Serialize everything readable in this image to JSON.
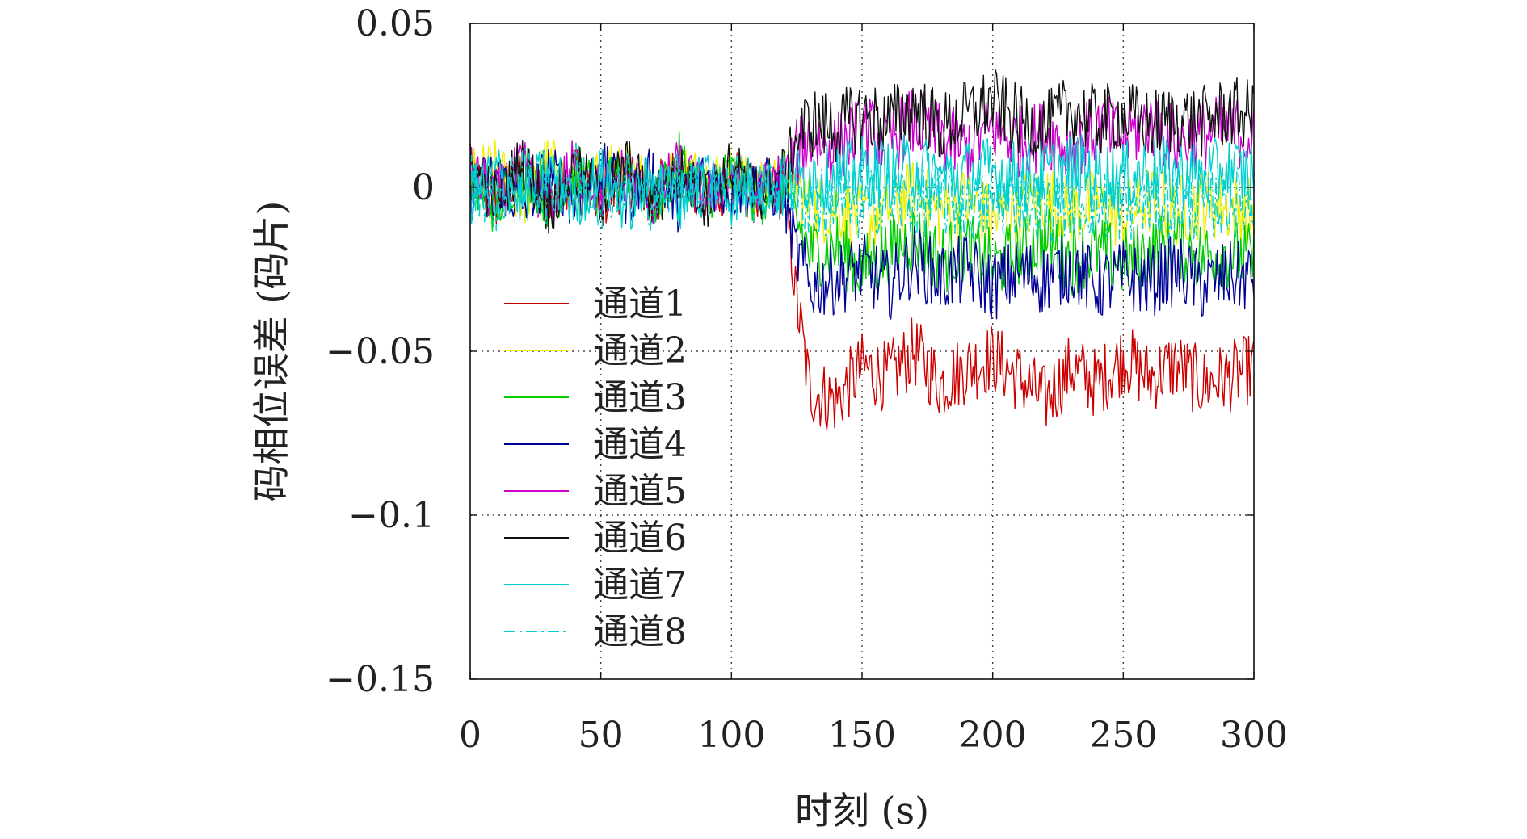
{
  "chart_data": {
    "type": "line",
    "xlabel": "时刻 (s)",
    "ylabel": "码相位误差 (码片)",
    "xlim": [
      0,
      300
    ],
    "ylim": [
      -0.15,
      0.05
    ],
    "xticks": [
      0,
      50,
      100,
      150,
      200,
      250,
      300
    ],
    "xtick_labels": [
      "0",
      "50",
      "100",
      "150",
      "200",
      "250",
      "300"
    ],
    "yticks": [
      0.05,
      0,
      -0.05,
      -0.1,
      -0.15
    ],
    "ytick_labels": [
      "0.05",
      "0",
      "−0.05",
      "−0.1",
      "−0.15"
    ],
    "grid": true,
    "legend_position": "lower-left",
    "x_sample": [
      0,
      10,
      20,
      30,
      40,
      50,
      60,
      70,
      80,
      90,
      100,
      110,
      120,
      125,
      130,
      140,
      150,
      160,
      170,
      180,
      190,
      200,
      210,
      220,
      230,
      240,
      250,
      260,
      270,
      280,
      290,
      300
    ],
    "series": [
      {
        "name": "通道1",
        "color": "#cc0000",
        "dash": "",
        "values": [
          0.002,
          -0.004,
          0.006,
          -0.003,
          0.004,
          -0.005,
          0.003,
          -0.002,
          0.005,
          -0.004,
          0.002,
          -0.003,
          0.001,
          -0.035,
          -0.062,
          -0.065,
          -0.055,
          -0.058,
          -0.05,
          -0.06,
          -0.055,
          -0.052,
          -0.058,
          -0.065,
          -0.055,
          -0.06,
          -0.052,
          -0.058,
          -0.054,
          -0.06,
          -0.058,
          -0.055
        ]
      },
      {
        "name": "通道2",
        "color": "#f0f000",
        "dash": "",
        "values": [
          0.003,
          0.006,
          -0.004,
          0.008,
          -0.002,
          0.004,
          0.01,
          -0.003,
          0.006,
          0.002,
          0.005,
          -0.002,
          0.004,
          0.0,
          -0.008,
          -0.005,
          -0.01,
          -0.006,
          -0.002,
          -0.008,
          -0.004,
          -0.01,
          -0.006,
          -0.003,
          -0.008,
          -0.005,
          -0.009,
          -0.004,
          -0.007,
          -0.005,
          -0.006,
          -0.008
        ]
      },
      {
        "name": "通道3",
        "color": "#00cc00",
        "dash": "",
        "values": [
          0.001,
          -0.006,
          0.007,
          -0.004,
          0.005,
          -0.003,
          0.006,
          -0.005,
          0.008,
          -0.002,
          0.004,
          -0.004,
          0.002,
          -0.01,
          -0.02,
          -0.018,
          -0.025,
          -0.02,
          -0.015,
          -0.022,
          -0.018,
          -0.024,
          -0.02,
          -0.016,
          -0.022,
          -0.019,
          -0.023,
          -0.02,
          -0.017,
          -0.021,
          -0.02,
          -0.022
        ]
      },
      {
        "name": "通道4",
        "color": "#000099",
        "dash": "",
        "values": [
          -0.002,
          0.004,
          -0.006,
          0.005,
          -0.004,
          0.006,
          -0.003,
          0.004,
          -0.005,
          0.003,
          -0.002,
          0.002,
          -0.003,
          -0.02,
          -0.03,
          -0.028,
          -0.025,
          -0.03,
          -0.022,
          -0.028,
          -0.025,
          -0.03,
          -0.026,
          -0.028,
          -0.024,
          -0.03,
          -0.027,
          -0.029,
          -0.025,
          -0.03,
          -0.027,
          -0.028
        ]
      },
      {
        "name": "通道5",
        "color": "#cc00cc",
        "dash": "",
        "values": [
          0.004,
          -0.003,
          0.006,
          -0.005,
          0.007,
          -0.002,
          0.005,
          -0.004,
          0.006,
          -0.003,
          0.004,
          -0.002,
          0.003,
          0.01,
          0.015,
          0.012,
          0.018,
          0.014,
          0.02,
          0.015,
          0.012,
          0.018,
          0.014,
          0.016,
          0.012,
          0.018,
          0.015,
          0.02,
          0.014,
          0.016,
          0.018,
          0.015
        ]
      },
      {
        "name": "通道6",
        "color": "#111111",
        "dash": "",
        "values": [
          0.006,
          -0.004,
          0.008,
          -0.006,
          0.005,
          -0.003,
          0.007,
          -0.005,
          0.004,
          -0.004,
          0.006,
          -0.002,
          0.004,
          0.015,
          0.02,
          0.018,
          0.022,
          0.02,
          0.025,
          0.018,
          0.022,
          0.026,
          0.02,
          0.018,
          0.024,
          0.02,
          0.022,
          0.019,
          0.021,
          0.02,
          0.023,
          0.022
        ]
      },
      {
        "name": "通道7",
        "color": "#00d0d0",
        "dash": "",
        "values": [
          -0.003,
          0.005,
          -0.004,
          0.006,
          -0.005,
          0.004,
          -0.006,
          0.003,
          -0.004,
          0.005,
          -0.003,
          0.003,
          -0.002,
          0.002,
          0.004,
          0.003,
          0.005,
          0.004,
          0.006,
          0.003,
          0.004,
          0.005,
          0.003,
          0.004,
          0.006,
          0.004,
          0.003,
          0.005,
          0.004,
          0.003,
          0.005,
          0.004
        ]
      },
      {
        "name": "通道8",
        "color": "#00d0d0",
        "dash": "14 5 3 5",
        "values": [
          0.002,
          -0.005,
          0.004,
          -0.003,
          0.006,
          -0.004,
          0.003,
          -0.005,
          0.004,
          -0.002,
          0.003,
          -0.003,
          0.002,
          -0.002,
          -0.005,
          -0.004,
          -0.006,
          -0.003,
          -0.005,
          -0.004,
          -0.006,
          -0.005,
          -0.003,
          -0.006,
          -0.004,
          -0.005,
          -0.006,
          -0.004,
          -0.005,
          -0.006,
          -0.004,
          -0.005
        ]
      }
    ]
  }
}
